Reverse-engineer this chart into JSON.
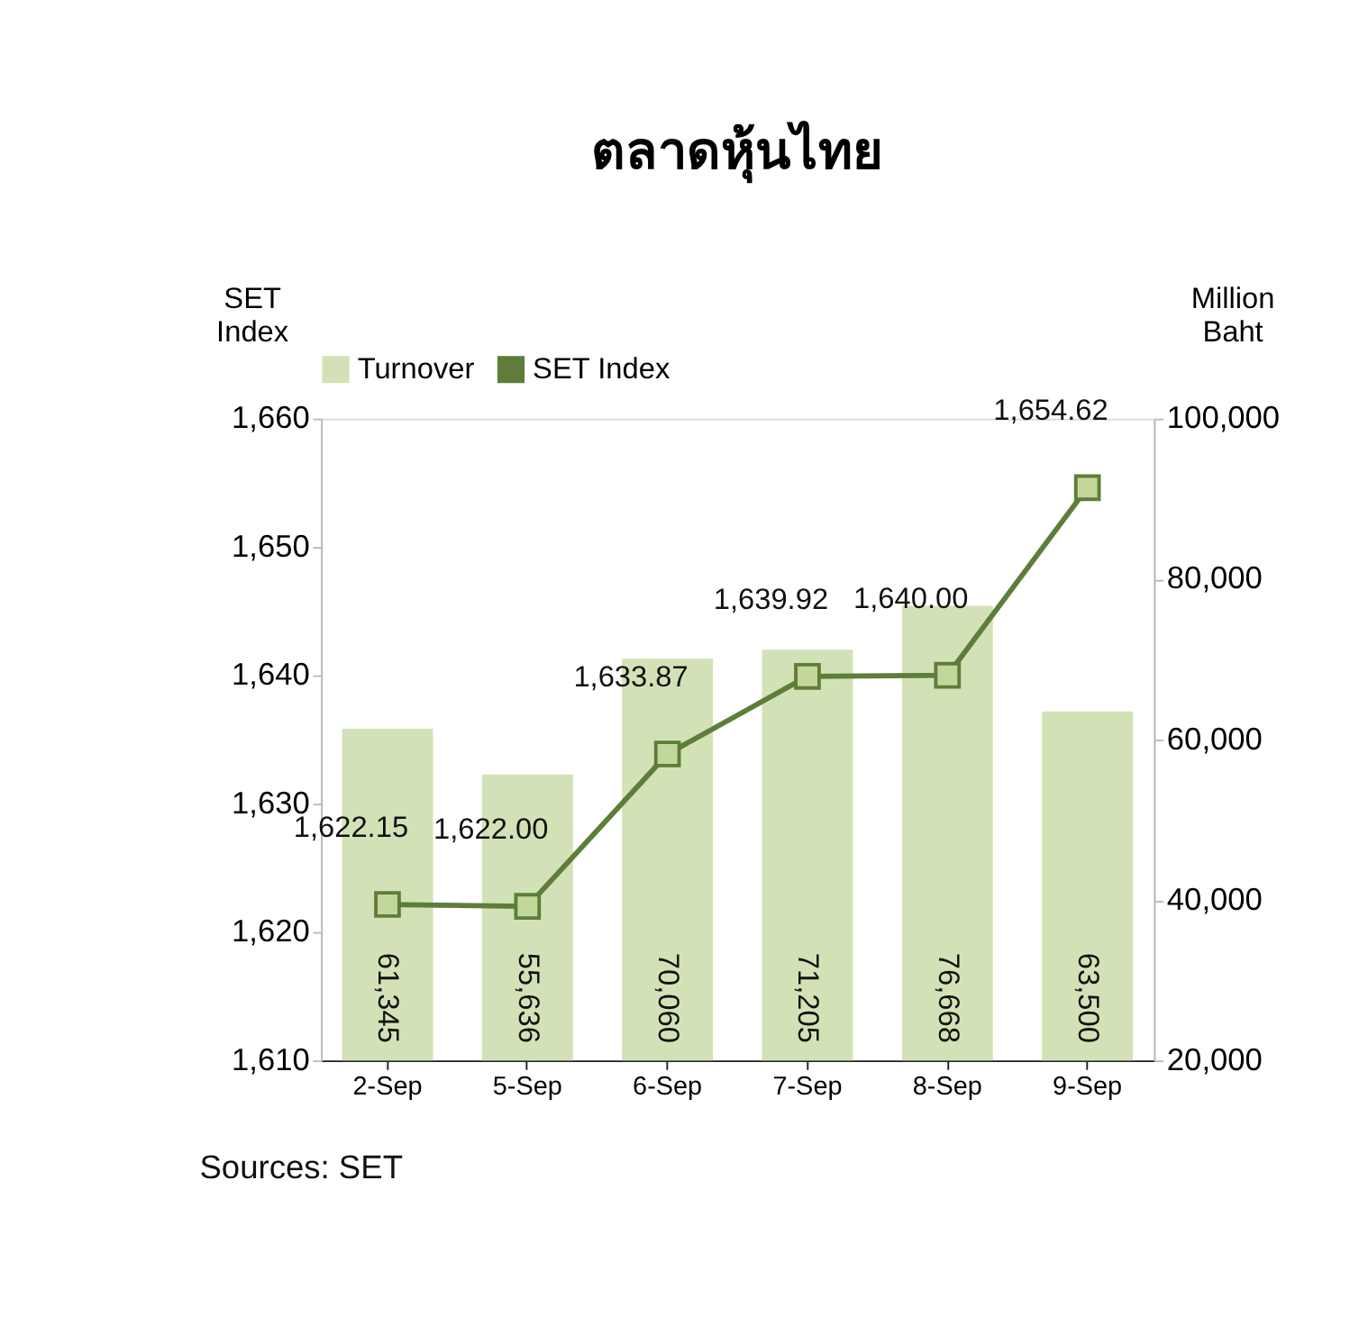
{
  "chart_data": {
    "type": "bar",
    "title": "ตลาดหุ้นไทย",
    "ylabel": "SET Index",
    "y2label": "Million Baht",
    "categories": [
      "2-Sep",
      "5-Sep",
      "6-Sep",
      "7-Sep",
      "8-Sep",
      "9-Sep"
    ],
    "series": [
      {
        "name": "Turnover",
        "axis": "y2",
        "color": "#d3e2b6",
        "values": [
          61345,
          55636,
          70060,
          71205,
          76668,
          63500
        ],
        "value_labels": [
          "61,345",
          "55,636",
          "70,060",
          "71,205",
          "76,668",
          "63,500"
        ]
      },
      {
        "name": "SET Index",
        "type": "line",
        "color": "#5e7d3a",
        "marker": "square",
        "values": [
          1622.15,
          1622.0,
          1633.87,
          1639.92,
          1640.0,
          1654.62
        ],
        "value_labels": [
          "1,622.15",
          "1,622.00",
          "1,633.87",
          "1,639.92",
          "1,640.00",
          "1,654.62"
        ]
      }
    ],
    "ylim": [
      1610,
      1660
    ],
    "yticks": [
      {
        "value": 1610,
        "label": "1,610"
      },
      {
        "value": 1620,
        "label": "1,620"
      },
      {
        "value": 1630,
        "label": "1,630"
      },
      {
        "value": 1640,
        "label": "1,640"
      },
      {
        "value": 1650,
        "label": "1,650"
      },
      {
        "value": 1660,
        "label": "1,660"
      }
    ],
    "y2lim": [
      20000,
      100000
    ],
    "y2ticks": [
      {
        "value": 20000,
        "label": "20,000"
      },
      {
        "value": 40000,
        "label": "40,000"
      },
      {
        "value": 60000,
        "label": "60,000"
      },
      {
        "value": 80000,
        "label": "80,000"
      },
      {
        "value": 100000,
        "label": "100,000"
      }
    ],
    "grid": false,
    "legend": "top",
    "annotations": [
      "Sources: SET"
    ]
  }
}
